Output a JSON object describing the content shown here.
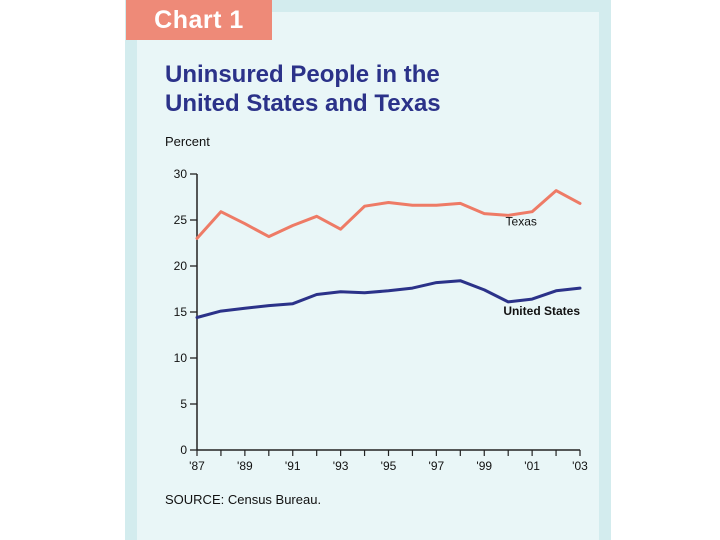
{
  "tab_label": "Chart 1",
  "colors": {
    "texas": "#ee7b66",
    "united_states": "#2b3289",
    "background": "#e9f6f7",
    "frame": "#d3ecee",
    "tab": "#ee8a78"
  },
  "chart_data": {
    "type": "line",
    "title": "Uninsured People in the United States and Texas",
    "title_lines": [
      "Uninsured People in the",
      "United States and Texas"
    ],
    "ylabel": "Percent",
    "xlabel": "",
    "ylim": [
      0,
      30
    ],
    "yticks": [
      0,
      5,
      10,
      15,
      20,
      25,
      30
    ],
    "x": [
      1987,
      1988,
      1989,
      1990,
      1991,
      1992,
      1993,
      1994,
      1995,
      1996,
      1997,
      1998,
      1999,
      2000,
      2001,
      2002,
      2003
    ],
    "xlim": [
      1987,
      2003
    ],
    "xtick_labels": [
      "'87",
      "'89",
      "'91",
      "'93",
      "'95",
      "'97",
      "'99",
      "'01",
      "'03"
    ],
    "xtick_values": [
      1987,
      1989,
      1991,
      1993,
      1995,
      1997,
      1999,
      2001,
      2003
    ],
    "series": [
      {
        "name": "Texas",
        "values": [
          23.0,
          25.9,
          24.6,
          23.2,
          24.4,
          25.4,
          24.0,
          26.5,
          26.9,
          26.6,
          26.6,
          26.8,
          25.7,
          25.5,
          25.9,
          28.2,
          26.8
        ]
      },
      {
        "name": "United States",
        "values": [
          14.4,
          15.1,
          15.4,
          15.7,
          15.9,
          16.9,
          17.2,
          17.1,
          17.3,
          17.6,
          18.2,
          18.4,
          17.4,
          16.1,
          16.4,
          17.3,
          17.6
        ]
      }
    ],
    "series_labels": [
      "Texas",
      "United States"
    ],
    "source": "SOURCE: Census Bureau."
  }
}
